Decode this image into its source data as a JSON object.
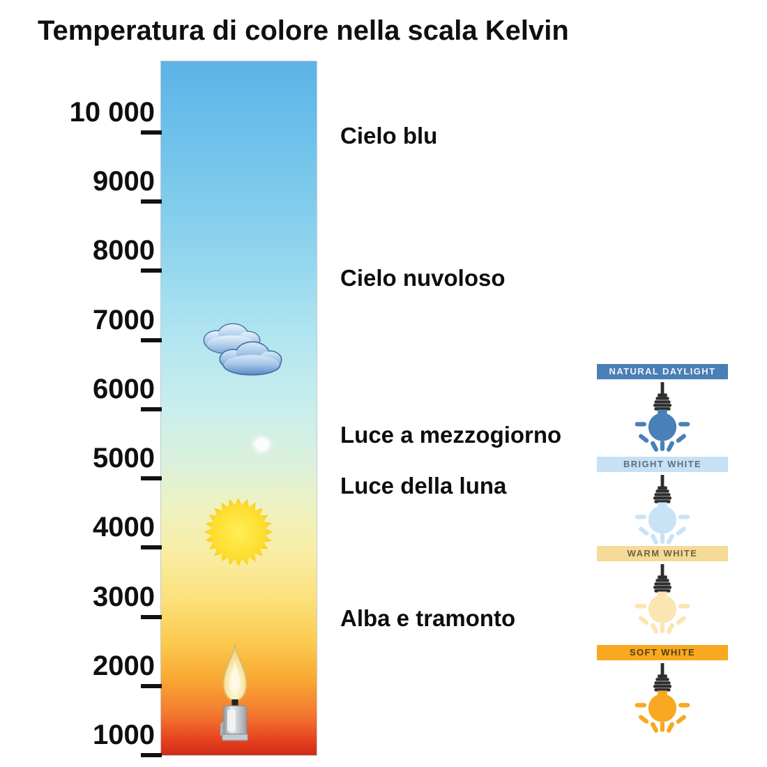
{
  "title": "Temperatura di colore nella scala Kelvin",
  "kelvin_scale": {
    "unit": "K",
    "max_kelvin": 10000,
    "min_kelvin": 1000,
    "tick_labels": [
      "10 000",
      "9000",
      "8000",
      "7000",
      "6000",
      "5000",
      "4000",
      "3000",
      "2000",
      "1000"
    ],
    "gradient_stops": [
      {
        "pos": 0,
        "color": "#5cb3e7"
      },
      {
        "pos": 10,
        "color": "#6cc0ea"
      },
      {
        "pos": 20,
        "color": "#7fcbec"
      },
      {
        "pos": 30,
        "color": "#97d8ee"
      },
      {
        "pos": 40,
        "color": "#b3e5f1"
      },
      {
        "pos": 50,
        "color": "#c9eeec"
      },
      {
        "pos": 58,
        "color": "#dbf0dc"
      },
      {
        "pos": 64,
        "color": "#edf2c2"
      },
      {
        "pos": 71,
        "color": "#f9eda4"
      },
      {
        "pos": 78,
        "color": "#fcdf78"
      },
      {
        "pos": 84,
        "color": "#fcc94e"
      },
      {
        "pos": 89,
        "color": "#f9a833"
      },
      {
        "pos": 94,
        "color": "#f47a31"
      },
      {
        "pos": 98,
        "color": "#e4401f"
      },
      {
        "pos": 100,
        "color": "#cf2b17"
      }
    ]
  },
  "annotations": [
    {
      "text": "Cielo blu"
    },
    {
      "text": "Cielo nuvoloso"
    },
    {
      "text": "Luce a mezzogiorno"
    },
    {
      "text": "Luce della luna"
    },
    {
      "text": "Alba e tramonto"
    }
  ],
  "scale_icons": [
    "cloud-icon",
    "moon-dot-icon",
    "sun-icon",
    "candle-icon"
  ],
  "bulb_cards": [
    {
      "label": "NATURAL DAYLIGHT",
      "header_bg": "#4a7fb5",
      "header_text": "#edf4fb",
      "bulb_color": "#4a80b8"
    },
    {
      "label": "BRIGHT WHITE",
      "header_bg": "#c6e1f5",
      "header_text": "#5f6e7a",
      "bulb_color": "#c9e3f6"
    },
    {
      "label": "WARM WHITE",
      "header_bg": "#f5db97",
      "header_text": "#6e6248",
      "bulb_color": "#fbe5b0"
    },
    {
      "label": "SOFT WHITE",
      "header_bg": "#f8a821",
      "header_text": "#513f10",
      "bulb_color": "#f8a821"
    }
  ]
}
